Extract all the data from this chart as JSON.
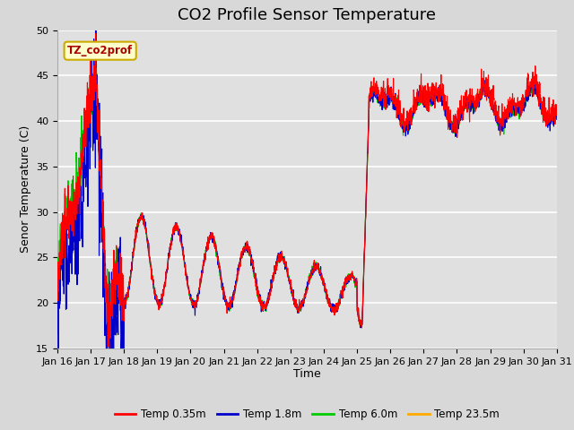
{
  "title": "CO2 Profile Sensor Temperature",
  "ylabel": "Senor Temperature (C)",
  "xlabel": "Time",
  "ylim": [
    15,
    50
  ],
  "xlim": [
    0,
    15
  ],
  "x_tick_labels": [
    "Jan 16",
    "Jan 17",
    "Jan 18",
    "Jan 19",
    "Jan 20",
    "Jan 21",
    "Jan 22",
    "Jan 23",
    "Jan 24",
    "Jan 25",
    "Jan 26",
    "Jan 27",
    "Jan 28",
    "Jan 29",
    "Jan 30",
    "Jan 31"
  ],
  "legend_label": "TZ_co2prof",
  "series_labels": [
    "Temp 0.35m",
    "Temp 1.8m",
    "Temp 6.0m",
    "Temp 23.5m"
  ],
  "series_colors": [
    "#ff0000",
    "#0000cc",
    "#00cc00",
    "#ffaa00"
  ],
  "fig_bg_color": "#d8d8d8",
  "plot_bg_color": "#e0e0e0",
  "legend_box_color": "#ffffcc",
  "legend_box_edge": "#ccaa00",
  "title_fontsize": 13,
  "axis_fontsize": 9,
  "tick_fontsize": 8
}
